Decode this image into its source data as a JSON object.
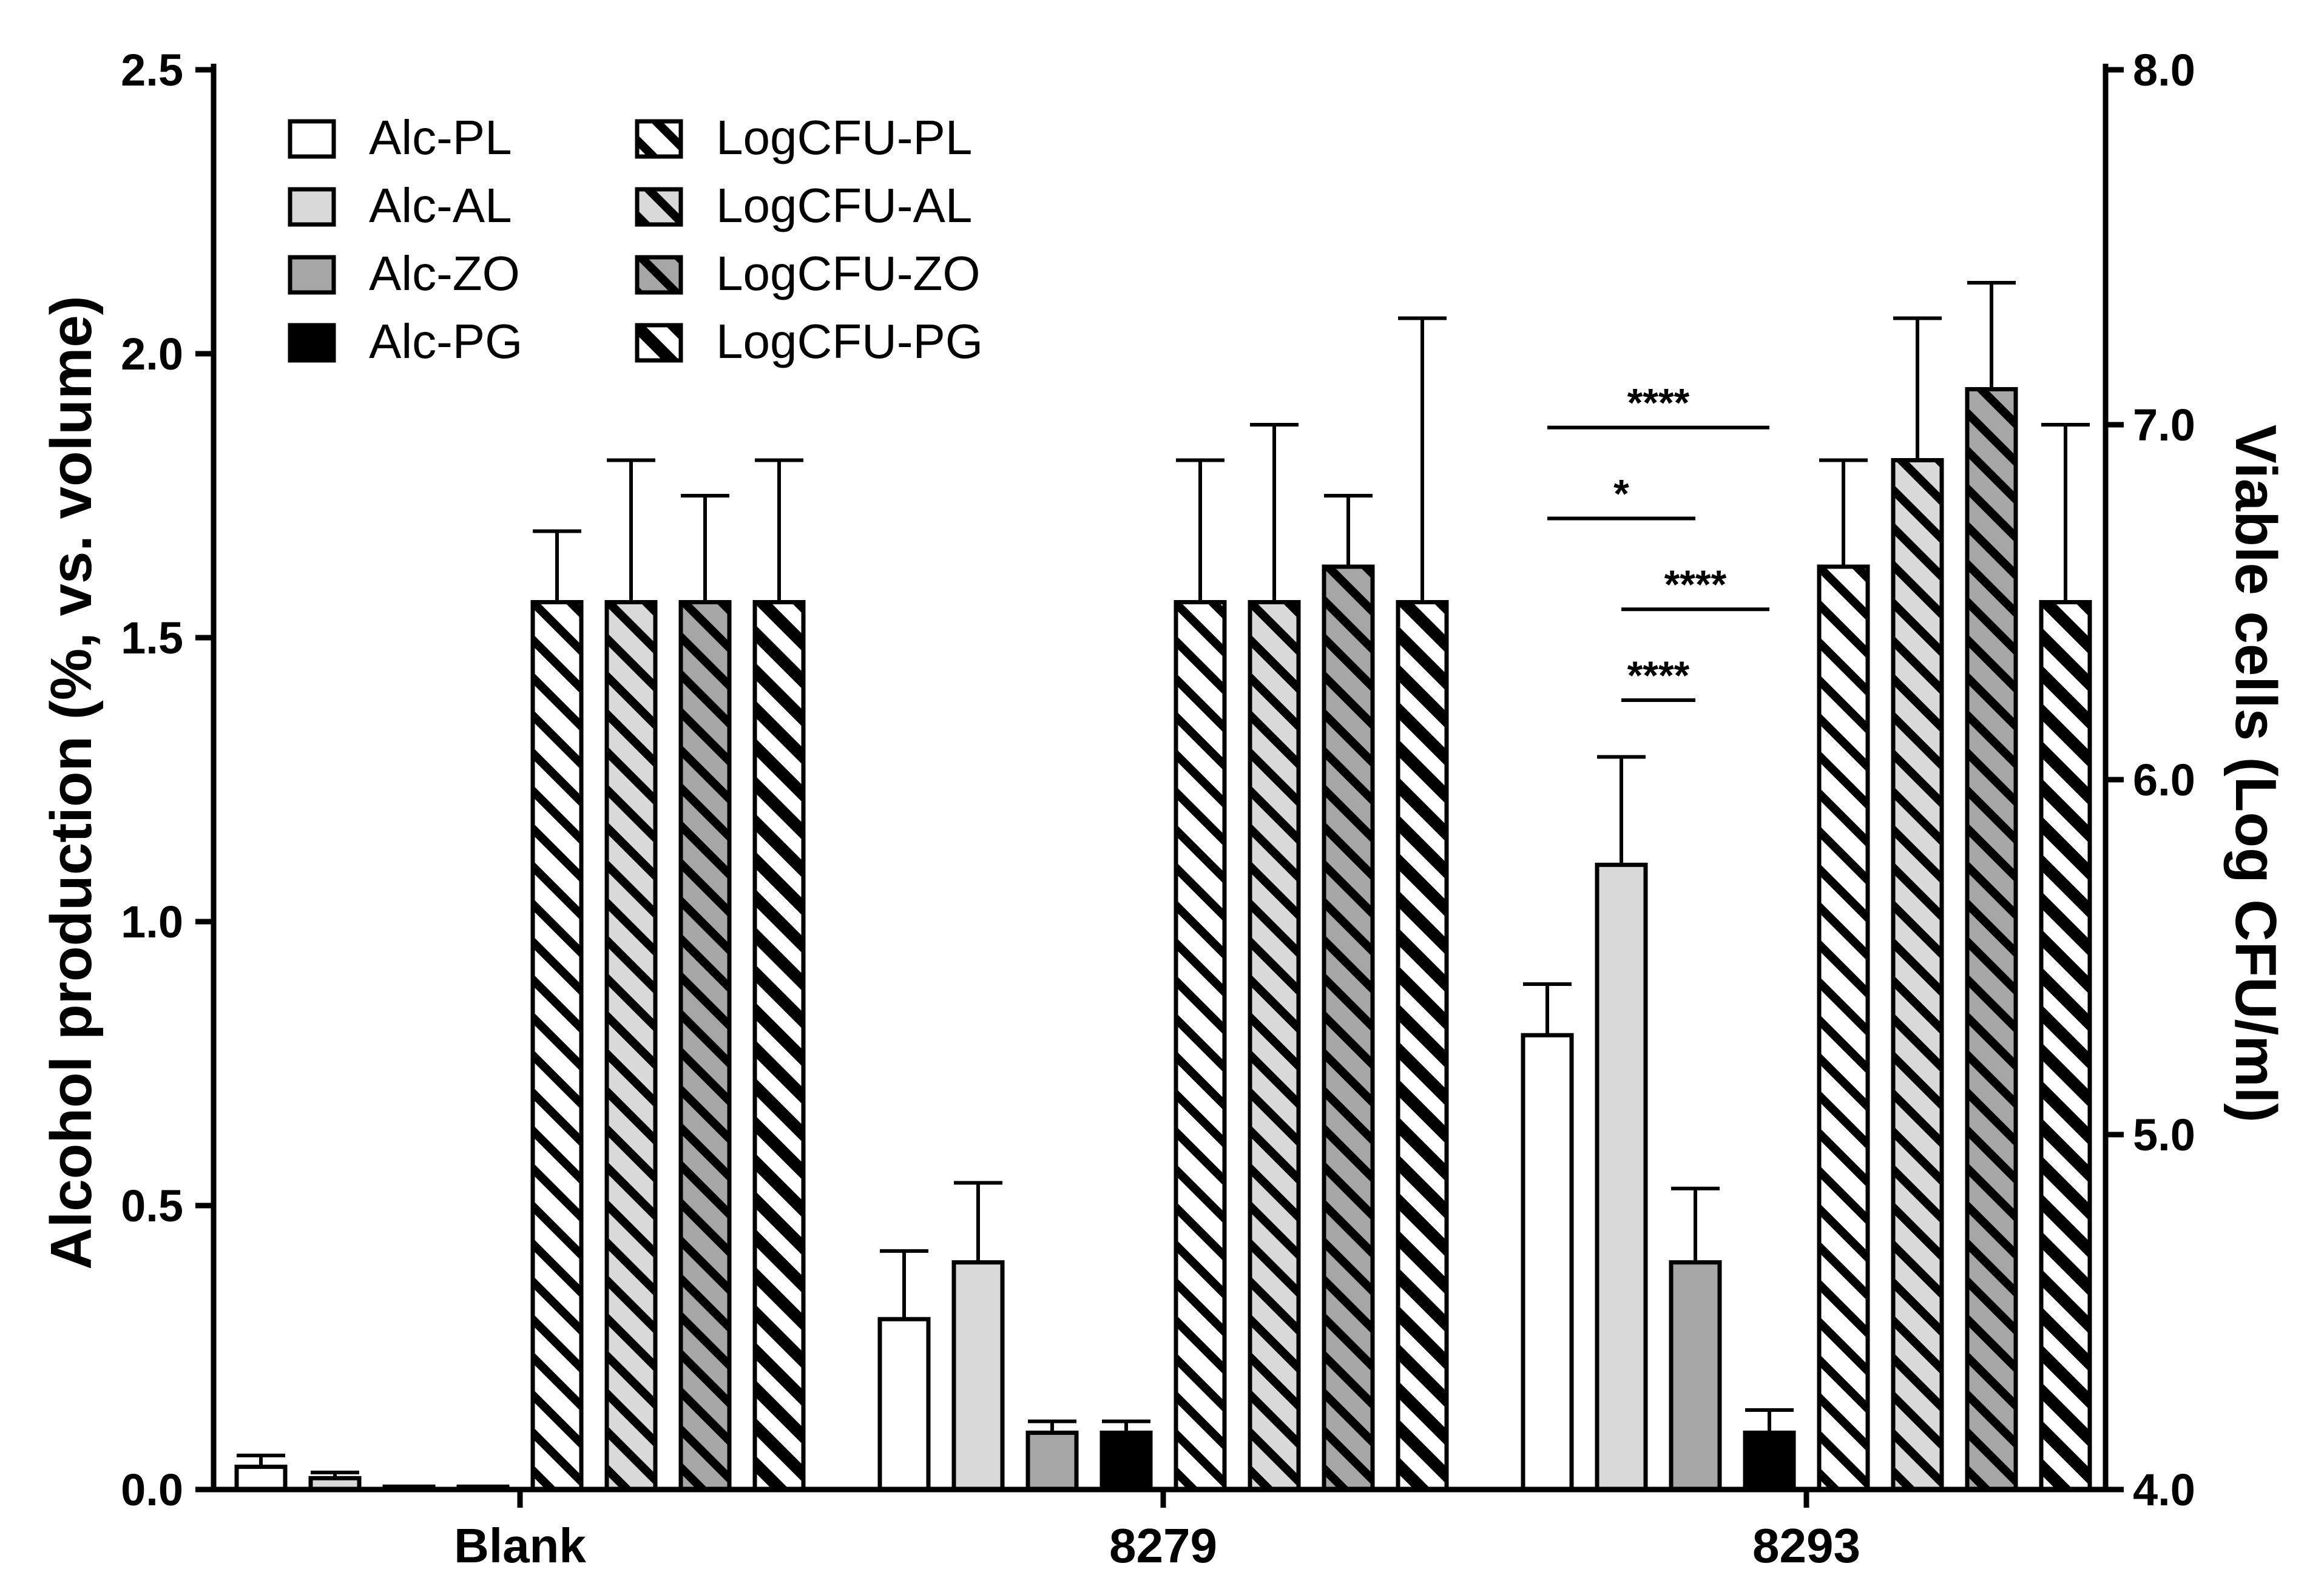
{
  "chart_data": {
    "type": "bar",
    "title": "",
    "xlabel": "",
    "ylabel": "Alcohol production  (%, vs. volume)",
    "y2label": "Viable cells  (Log CFU/ml)",
    "ylim": [
      0,
      2.5
    ],
    "y2lim": [
      4.0,
      8.0
    ],
    "yticks": [
      "0.0",
      "0.5",
      "1.0",
      "1.5",
      "2.0",
      "2.5"
    ],
    "y2ticks": [
      "4.0",
      "5.0",
      "6.0",
      "7.0",
      "8.0"
    ],
    "categories": [
      "Blank",
      "8279",
      "8293"
    ],
    "colors": {
      "PL": "#ffffff",
      "AL": "#d9d9d9",
      "ZO": "#a6a6a6",
      "PG": "#000000",
      "hatch": "#000000"
    },
    "series": [
      {
        "name": "Alc-PL",
        "axis": "left",
        "key": "PL",
        "hatched": false,
        "values": [
          0.04,
          0.3,
          0.8
        ],
        "errors": [
          0.02,
          0.12,
          0.09
        ]
      },
      {
        "name": "Alc-AL",
        "axis": "left",
        "key": "AL",
        "hatched": false,
        "values": [
          0.02,
          0.4,
          1.1
        ],
        "errors": [
          0.01,
          0.14,
          0.19
        ]
      },
      {
        "name": "Alc-ZO",
        "axis": "left",
        "key": "ZO",
        "hatched": false,
        "values": [
          0.005,
          0.1,
          0.4
        ],
        "errors": [
          0,
          0.02,
          0.13
        ]
      },
      {
        "name": "Alc-PG",
        "axis": "left",
        "key": "PG",
        "hatched": false,
        "values": [
          0.005,
          0.1,
          0.1
        ],
        "errors": [
          0,
          0.02,
          0.04
        ]
      },
      {
        "name": "LogCFU-PL",
        "axis": "right",
        "key": "PL",
        "hatched": true,
        "values": [
          6.5,
          6.5,
          6.6
        ],
        "errors": [
          0.2,
          0.4,
          0.3
        ]
      },
      {
        "name": "LogCFU-AL",
        "axis": "right",
        "key": "AL",
        "hatched": true,
        "values": [
          6.5,
          6.5,
          6.9
        ],
        "errors": [
          0.4,
          0.5,
          0.4
        ]
      },
      {
        "name": "LogCFU-ZO",
        "axis": "right",
        "key": "ZO",
        "hatched": true,
        "values": [
          6.5,
          6.6,
          7.1
        ],
        "errors": [
          0.3,
          0.2,
          0.3
        ]
      },
      {
        "name": "LogCFU-PG",
        "axis": "right",
        "key": "PG",
        "hatched": true,
        "values": [
          6.5,
          6.5,
          6.5
        ],
        "errors": [
          0.4,
          0.8,
          0.5
        ]
      }
    ],
    "legend": [
      "Alc-PL",
      "Alc-AL",
      "Alc-ZO",
      "Alc-PG",
      "LogCFU-PL",
      "LogCFU-AL",
      "LogCFU-ZO",
      "LogCFU-PG"
    ],
    "legend_position": "top-left",
    "significance": [
      {
        "category": "8293",
        "from": "Alc-PL",
        "to": "Alc-PG",
        "label": "****",
        "y": 1.87
      },
      {
        "category": "8293",
        "from": "Alc-PL",
        "to": "Alc-ZO",
        "label": "*",
        "y": 1.71
      },
      {
        "category": "8293",
        "from": "Alc-AL",
        "to": "Alc-PG",
        "label": "****",
        "y": 1.55
      },
      {
        "category": "8293",
        "from": "Alc-AL",
        "to": "Alc-ZO",
        "label": "****",
        "y": 1.39
      }
    ]
  }
}
